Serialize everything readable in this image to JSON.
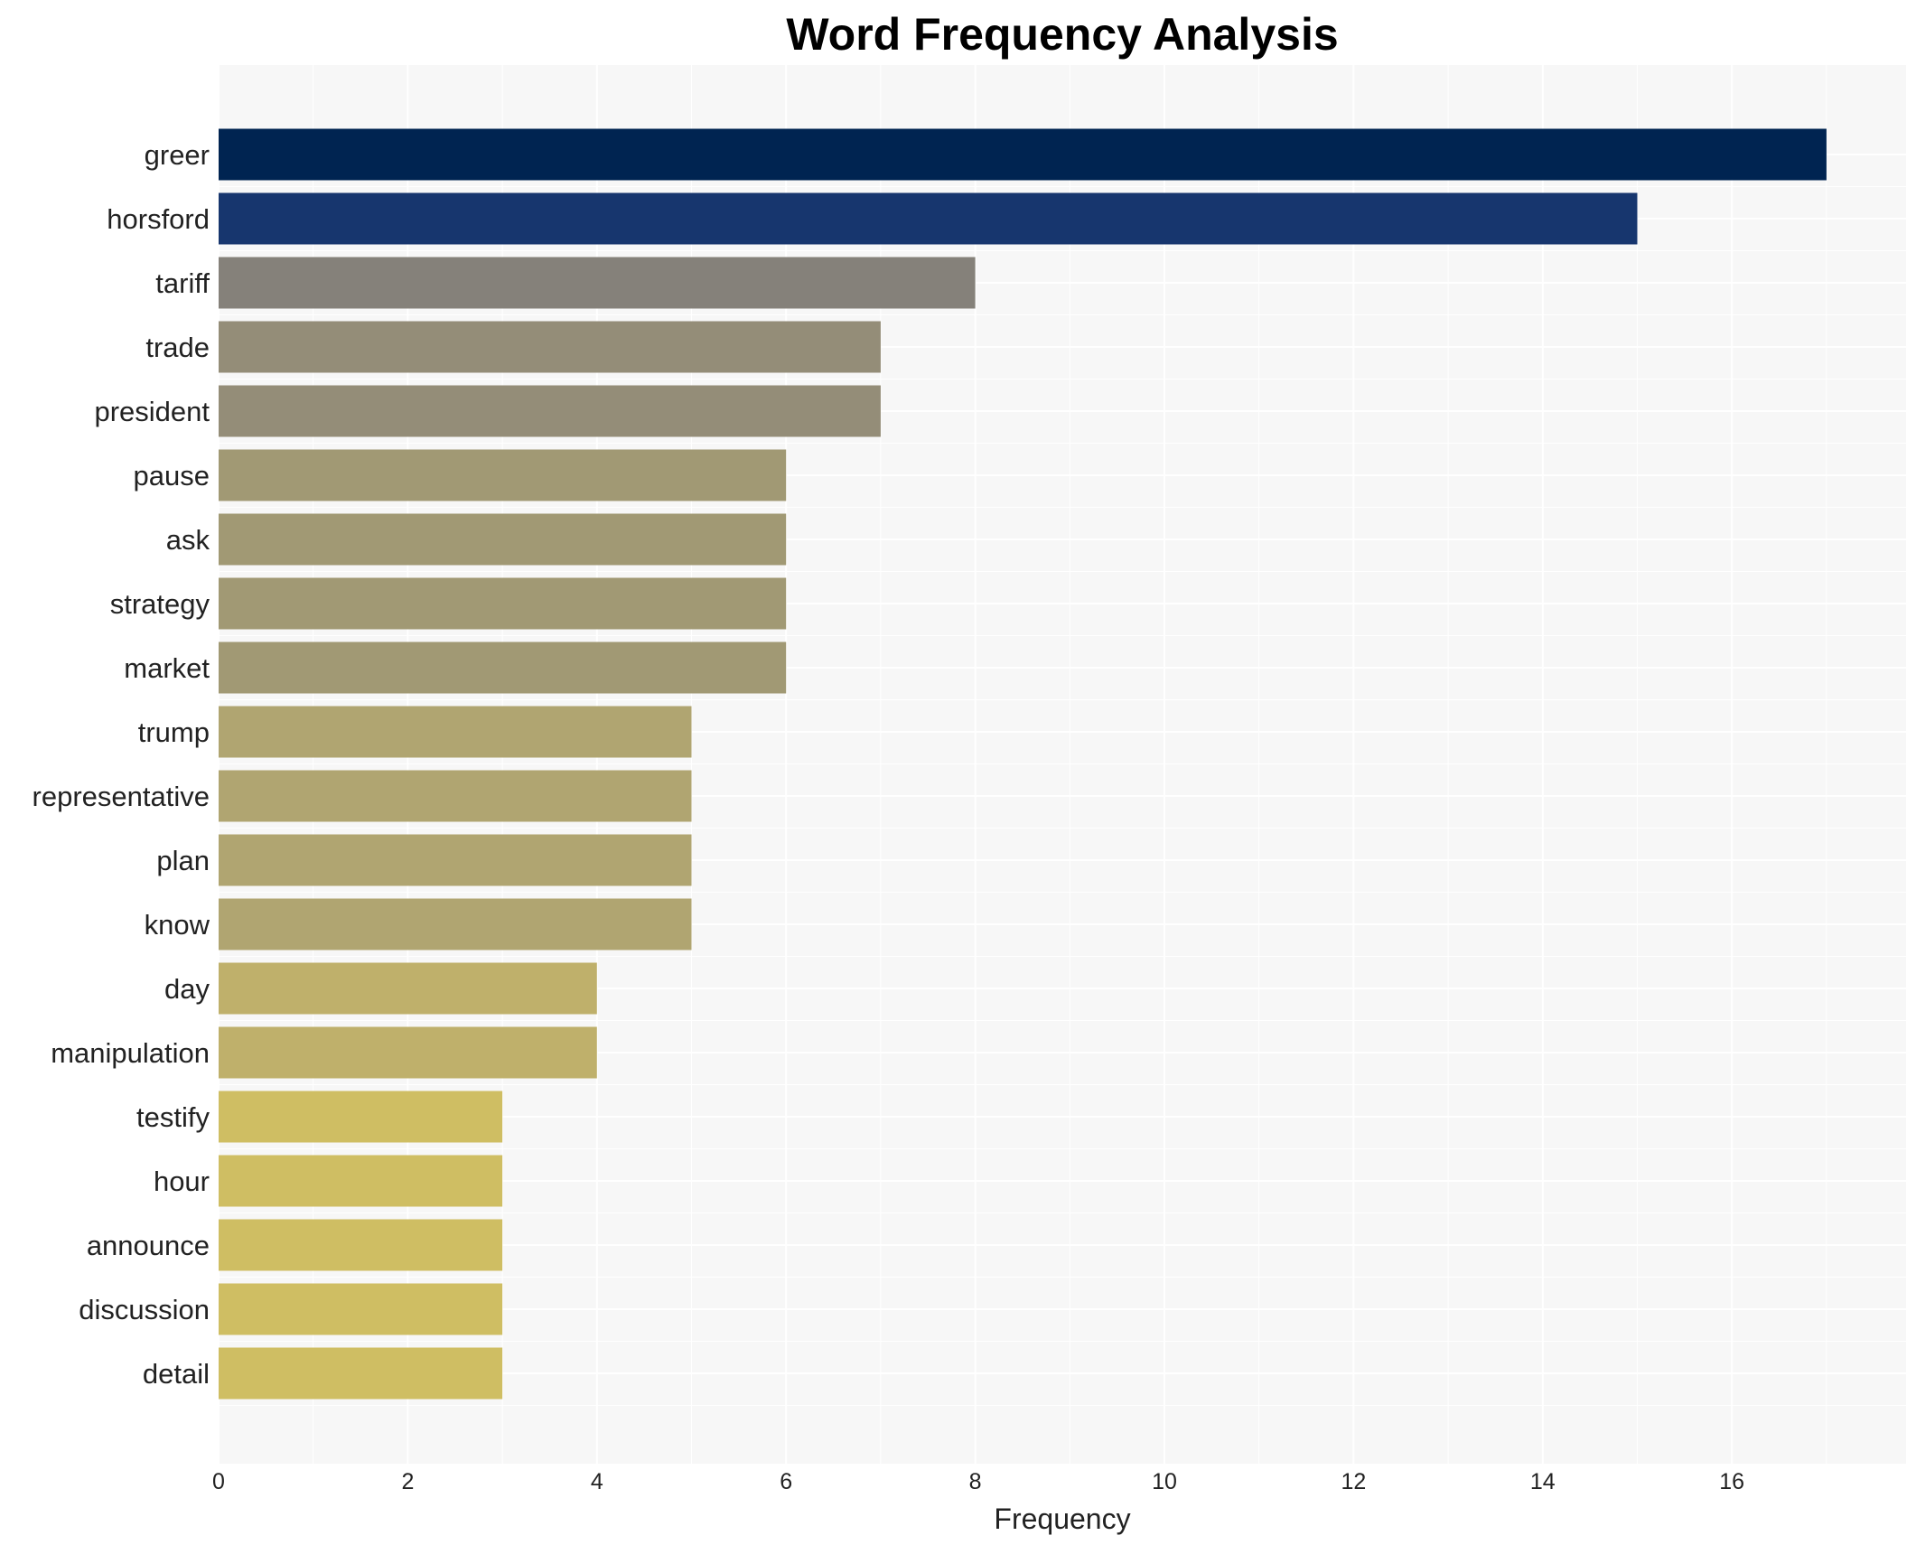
{
  "chart_data": {
    "type": "bar",
    "orientation": "horizontal",
    "title": "Word Frequency Analysis",
    "xlabel": "Frequency",
    "ylabel": "",
    "categories": [
      "greer",
      "horsford",
      "tariff",
      "trade",
      "president",
      "pause",
      "ask",
      "strategy",
      "market",
      "trump",
      "representative",
      "plan",
      "know",
      "day",
      "manipulation",
      "testify",
      "hour",
      "announce",
      "discussion",
      "detail"
    ],
    "values": [
      17,
      15,
      8,
      7,
      7,
      6,
      6,
      6,
      6,
      5,
      5,
      5,
      5,
      4,
      4,
      3,
      3,
      3,
      3,
      3
    ],
    "colors": [
      "#002451",
      "#17366e",
      "#85817a",
      "#948d78",
      "#948d78",
      "#a19974",
      "#a19974",
      "#a19974",
      "#a19974",
      "#b0a571",
      "#b0a571",
      "#b0a571",
      "#b0a571",
      "#bfb06b",
      "#bfb06b",
      "#cfbe63",
      "#cfbe63",
      "#cfbe63",
      "#cfbe63",
      "#cfbe63"
    ],
    "xlim": [
      0,
      17.85
    ],
    "xticks": [
      0,
      2,
      4,
      6,
      8,
      10,
      12,
      14,
      16
    ],
    "grid": true,
    "background": "#f7f7f7"
  }
}
